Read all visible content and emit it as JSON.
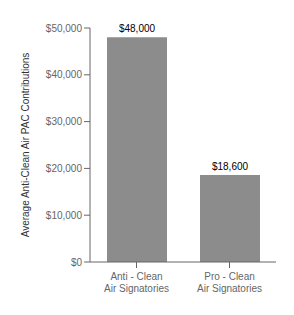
{
  "chart_data": {
    "type": "bar",
    "categories": [
      "Anti - Clean\nAir Signatories",
      "Pro - Clean\nAir Signatories"
    ],
    "values": [
      48000,
      18600
    ],
    "value_labels": [
      "$48,000",
      "$18,600"
    ],
    "data_labels": true,
    "color": "#8c8c8c",
    "ylabel": "Average Anti-Clean Air PAC Contributions",
    "ylim": [
      0,
      50000
    ],
    "yticks": [
      {
        "value": 0,
        "label": "$0"
      },
      {
        "value": 10000,
        "label": "$10,000"
      },
      {
        "value": 20000,
        "label": "$20,000"
      },
      {
        "value": 30000,
        "label": "$30,000"
      },
      {
        "value": 40000,
        "label": "$40,000"
      },
      {
        "value": 50000,
        "label": "$50,000"
      }
    ],
    "grid": false
  }
}
